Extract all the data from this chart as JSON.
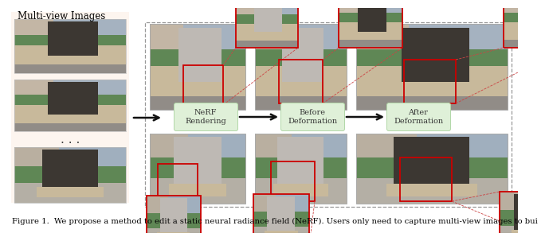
{
  "title": "Multi-view Images",
  "caption": "Figure 1.  We propose a method to edit a static neural radiance field (NeRF). Users only need to capture multi-view images to bui",
  "labels": [
    "NeRF\nRendering",
    "Before\nDeformation",
    "After\nDeformation"
  ],
  "label_box_color": "#dff0d8",
  "label_box_edge": "#b2d8a8",
  "bg_color": "#ffffff",
  "arrow_color": "#111111",
  "border_dashed_color": "#999999",
  "red_box_color": "#cc0000",
  "pink_line_color": "#e08080",
  "caption_fontsize": 7.2,
  "label_fontsize": 7.0,
  "title_fontsize": 8.5,
  "sky_color": [
    170,
    185,
    200
  ],
  "grass_color": [
    100,
    140,
    90
  ],
  "pedestal_color": [
    200,
    185,
    155
  ],
  "horse_dark_color": [
    60,
    55,
    50
  ],
  "horse_light_color": [
    190,
    185,
    180
  ],
  "building_color": [
    210,
    195,
    175
  ],
  "road_color": [
    150,
    145,
    140
  ]
}
